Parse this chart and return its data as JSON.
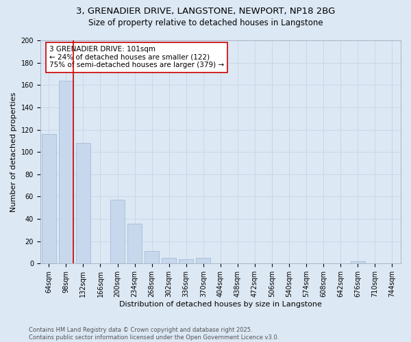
{
  "title_line1": "3, GRENADIER DRIVE, LANGSTONE, NEWPORT, NP18 2BG",
  "title_line2": "Size of property relative to detached houses in Langstone",
  "xlabel": "Distribution of detached houses by size in Langstone",
  "ylabel": "Number of detached properties",
  "categories": [
    "64sqm",
    "98sqm",
    "132sqm",
    "166sqm",
    "200sqm",
    "234sqm",
    "268sqm",
    "302sqm",
    "336sqm",
    "370sqm",
    "404sqm",
    "438sqm",
    "472sqm",
    "506sqm",
    "540sqm",
    "574sqm",
    "608sqm",
    "642sqm",
    "676sqm",
    "710sqm",
    "744sqm"
  ],
  "values": [
    116,
    164,
    108,
    0,
    57,
    36,
    11,
    5,
    4,
    5,
    0,
    0,
    0,
    0,
    0,
    0,
    0,
    0,
    2,
    0,
    0
  ],
  "bar_color": "#c8d8ec",
  "bar_edge_color": "#a8bcd4",
  "vline_xindex": 1,
  "vline_color": "#cc0000",
  "annotation_text": "3 GRENADIER DRIVE: 101sqm\n← 24% of detached houses are smaller (122)\n75% of semi-detached houses are larger (379) →",
  "annotation_box_color": "#ffffff",
  "annotation_box_edge_color": "#cc0000",
  "ylim": [
    0,
    200
  ],
  "yticks": [
    0,
    20,
    40,
    60,
    80,
    100,
    120,
    140,
    160,
    180,
    200
  ],
  "grid_color": "#c8d4e8",
  "background_color": "#dce8f4",
  "footer_text": "Contains HM Land Registry data © Crown copyright and database right 2025.\nContains public sector information licensed under the Open Government Licence v3.0.",
  "title_fontsize": 9.5,
  "subtitle_fontsize": 8.5,
  "axis_label_fontsize": 8,
  "tick_fontsize": 7,
  "annotation_fontsize": 7.5,
  "footer_fontsize": 6
}
